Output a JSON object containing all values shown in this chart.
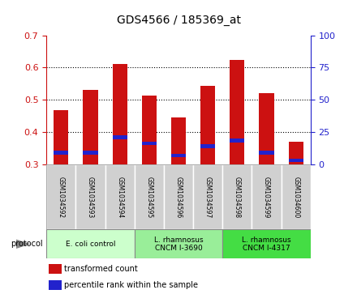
{
  "title": "GDS4566 / 185369_at",
  "samples": [
    "GSM1034592",
    "GSM1034593",
    "GSM1034594",
    "GSM1034595",
    "GSM1034596",
    "GSM1034597",
    "GSM1034598",
    "GSM1034599",
    "GSM1034600"
  ],
  "transformed_count": [
    0.468,
    0.53,
    0.61,
    0.513,
    0.446,
    0.543,
    0.625,
    0.522,
    0.37
  ],
  "percentile_as_value": [
    0.338,
    0.338,
    0.385,
    0.366,
    0.328,
    0.358,
    0.375,
    0.338,
    0.313
  ],
  "bar_bottom": 0.3,
  "ylim_left": [
    0.3,
    0.7
  ],
  "ylim_right": [
    0,
    100
  ],
  "yticks_left": [
    0.3,
    0.4,
    0.5,
    0.6,
    0.7
  ],
  "yticks_right": [
    0,
    25,
    50,
    75,
    100
  ],
  "red_color": "#CC1111",
  "blue_color": "#2222CC",
  "bar_width": 0.5,
  "blue_bar_height": 0.012,
  "protocol_groups": [
    {
      "label": "E. coli control",
      "start": 0,
      "end": 3,
      "color": "#ccffcc"
    },
    {
      "label": "L. rhamnosus\nCNCM I-3690",
      "start": 3,
      "end": 6,
      "color": "#99ee99"
    },
    {
      "label": "L. rhamnosus\nCNCM I-4317",
      "start": 6,
      "end": 9,
      "color": "#44dd44"
    }
  ],
  "legend_items": [
    {
      "label": "transformed count",
      "color": "#CC1111"
    },
    {
      "label": "percentile rank within the sample",
      "color": "#2222CC"
    }
  ],
  "protocol_label": "protocol",
  "sample_cell_color": "#d0d0d0",
  "cell_edge_color": "#ffffff",
  "plot_bg": "#ffffff",
  "grid_color": "#000000",
  "spine_color": "#888888"
}
